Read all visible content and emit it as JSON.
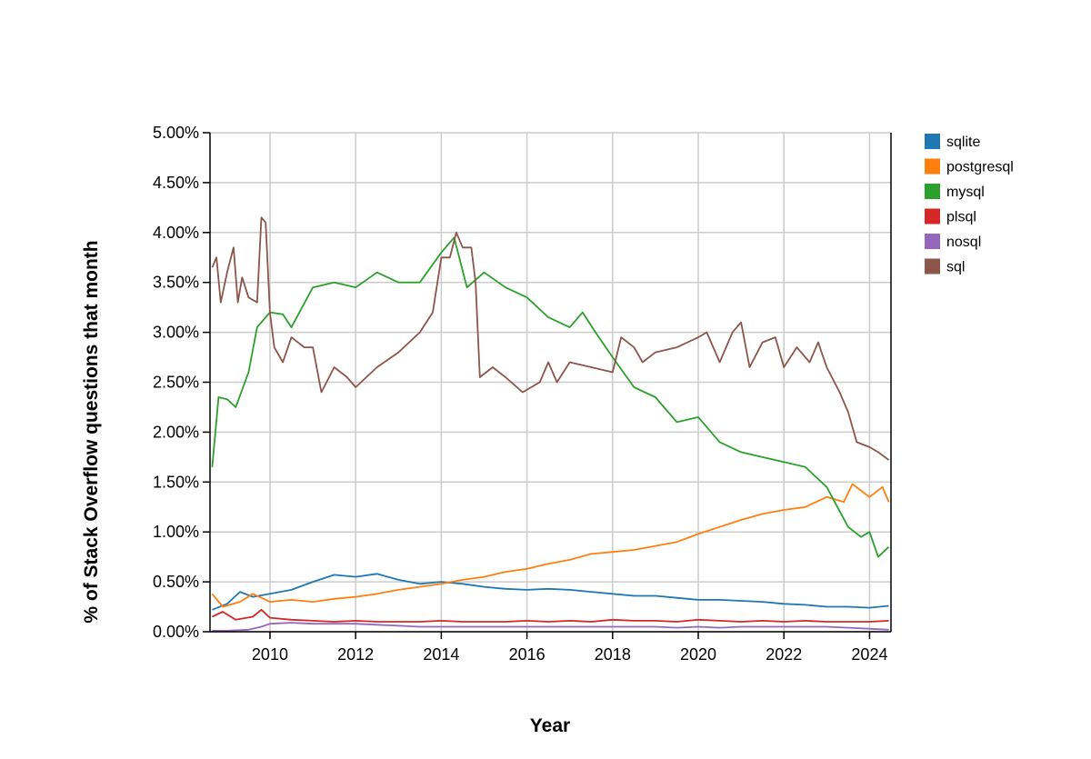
{
  "chart_data": {
    "type": "line",
    "xlabel": "Year",
    "ylabel": "% of Stack Overflow questions that month",
    "xlim": [
      2008.6,
      2024.5
    ],
    "ylim": [
      0,
      5
    ],
    "x_ticks": [
      2010,
      2012,
      2014,
      2016,
      2018,
      2020,
      2022,
      2024
    ],
    "x_tick_labels": [
      "2010",
      "2012",
      "2014",
      "2016",
      "2018",
      "2020",
      "2022",
      "2024"
    ],
    "y_ticks": [
      0,
      0.5,
      1,
      1.5,
      2,
      2.5,
      3,
      3.5,
      4,
      4.5,
      5
    ],
    "y_tick_labels": [
      "0.00%",
      "0.50%",
      "1.00%",
      "1.50%",
      "2.00%",
      "2.50%",
      "3.00%",
      "3.50%",
      "4.00%",
      "4.50%",
      "5.00%"
    ],
    "grid": true,
    "legend_position": "top-right",
    "series": [
      {
        "name": "sqlite",
        "color": "#1f77b4",
        "points": [
          [
            2008.65,
            0.22
          ],
          [
            2009.0,
            0.28
          ],
          [
            2009.3,
            0.4
          ],
          [
            2009.6,
            0.35
          ],
          [
            2010.0,
            0.38
          ],
          [
            2010.5,
            0.42
          ],
          [
            2011.0,
            0.5
          ],
          [
            2011.5,
            0.57
          ],
          [
            2012.0,
            0.55
          ],
          [
            2012.5,
            0.58
          ],
          [
            2013.0,
            0.52
          ],
          [
            2013.5,
            0.48
          ],
          [
            2014.0,
            0.5
          ],
          [
            2014.5,
            0.48
          ],
          [
            2015.0,
            0.45
          ],
          [
            2015.5,
            0.43
          ],
          [
            2016.0,
            0.42
          ],
          [
            2016.5,
            0.43
          ],
          [
            2017.0,
            0.42
          ],
          [
            2017.5,
            0.4
          ],
          [
            2018.0,
            0.38
          ],
          [
            2018.5,
            0.36
          ],
          [
            2019.0,
            0.36
          ],
          [
            2019.5,
            0.34
          ],
          [
            2020.0,
            0.32
          ],
          [
            2020.5,
            0.32
          ],
          [
            2021.0,
            0.31
          ],
          [
            2021.5,
            0.3
          ],
          [
            2022.0,
            0.28
          ],
          [
            2022.5,
            0.27
          ],
          [
            2023.0,
            0.25
          ],
          [
            2023.5,
            0.25
          ],
          [
            2024.0,
            0.24
          ],
          [
            2024.45,
            0.26
          ]
        ]
      },
      {
        "name": "postgresql",
        "color": "#ff7f0e",
        "points": [
          [
            2008.65,
            0.38
          ],
          [
            2008.9,
            0.25
          ],
          [
            2009.3,
            0.3
          ],
          [
            2009.6,
            0.38
          ],
          [
            2010.0,
            0.3
          ],
          [
            2010.5,
            0.32
          ],
          [
            2011.0,
            0.3
          ],
          [
            2011.5,
            0.33
          ],
          [
            2012.0,
            0.35
          ],
          [
            2012.5,
            0.38
          ],
          [
            2013.0,
            0.42
          ],
          [
            2013.5,
            0.45
          ],
          [
            2014.0,
            0.48
          ],
          [
            2014.5,
            0.52
          ],
          [
            2015.0,
            0.55
          ],
          [
            2015.5,
            0.6
          ],
          [
            2016.0,
            0.63
          ],
          [
            2016.5,
            0.68
          ],
          [
            2017.0,
            0.72
          ],
          [
            2017.5,
            0.78
          ],
          [
            2018.0,
            0.8
          ],
          [
            2018.5,
            0.82
          ],
          [
            2019.0,
            0.86
          ],
          [
            2019.5,
            0.9
          ],
          [
            2020.0,
            0.98
          ],
          [
            2020.5,
            1.05
          ],
          [
            2021.0,
            1.12
          ],
          [
            2021.5,
            1.18
          ],
          [
            2022.0,
            1.22
          ],
          [
            2022.5,
            1.25
          ],
          [
            2023.0,
            1.35
          ],
          [
            2023.4,
            1.3
          ],
          [
            2023.6,
            1.48
          ],
          [
            2024.0,
            1.35
          ],
          [
            2024.3,
            1.45
          ],
          [
            2024.45,
            1.3
          ]
        ]
      },
      {
        "name": "mysql",
        "color": "#2ca02c",
        "points": [
          [
            2008.65,
            1.65
          ],
          [
            2008.8,
            2.35
          ],
          [
            2009.0,
            2.33
          ],
          [
            2009.2,
            2.25
          ],
          [
            2009.5,
            2.6
          ],
          [
            2009.7,
            3.05
          ],
          [
            2010.0,
            3.2
          ],
          [
            2010.3,
            3.18
          ],
          [
            2010.5,
            3.05
          ],
          [
            2011.0,
            3.45
          ],
          [
            2011.5,
            3.5
          ],
          [
            2012.0,
            3.45
          ],
          [
            2012.5,
            3.6
          ],
          [
            2013.0,
            3.5
          ],
          [
            2013.5,
            3.5
          ],
          [
            2014.0,
            3.8
          ],
          [
            2014.3,
            3.95
          ],
          [
            2014.6,
            3.45
          ],
          [
            2015.0,
            3.6
          ],
          [
            2015.5,
            3.45
          ],
          [
            2016.0,
            3.35
          ],
          [
            2016.5,
            3.15
          ],
          [
            2017.0,
            3.05
          ],
          [
            2017.3,
            3.2
          ],
          [
            2017.6,
            3.0
          ],
          [
            2018.0,
            2.75
          ],
          [
            2018.5,
            2.45
          ],
          [
            2019.0,
            2.35
          ],
          [
            2019.5,
            2.1
          ],
          [
            2020.0,
            2.15
          ],
          [
            2020.5,
            1.9
          ],
          [
            2021.0,
            1.8
          ],
          [
            2021.5,
            1.75
          ],
          [
            2022.0,
            1.7
          ],
          [
            2022.5,
            1.65
          ],
          [
            2023.0,
            1.45
          ],
          [
            2023.5,
            1.05
          ],
          [
            2023.8,
            0.95
          ],
          [
            2024.0,
            1.0
          ],
          [
            2024.2,
            0.75
          ],
          [
            2024.45,
            0.85
          ]
        ]
      },
      {
        "name": "plsql",
        "color": "#d62728",
        "points": [
          [
            2008.65,
            0.15
          ],
          [
            2008.9,
            0.2
          ],
          [
            2009.2,
            0.12
          ],
          [
            2009.6,
            0.15
          ],
          [
            2009.8,
            0.22
          ],
          [
            2010.0,
            0.14
          ],
          [
            2010.5,
            0.12
          ],
          [
            2011.0,
            0.11
          ],
          [
            2011.5,
            0.1
          ],
          [
            2012.0,
            0.11
          ],
          [
            2012.5,
            0.1
          ],
          [
            2013.0,
            0.1
          ],
          [
            2013.5,
            0.1
          ],
          [
            2014.0,
            0.11
          ],
          [
            2014.5,
            0.1
          ],
          [
            2015.0,
            0.1
          ],
          [
            2015.5,
            0.1
          ],
          [
            2016.0,
            0.11
          ],
          [
            2016.5,
            0.1
          ],
          [
            2017.0,
            0.11
          ],
          [
            2017.5,
            0.1
          ],
          [
            2018.0,
            0.12
          ],
          [
            2018.5,
            0.11
          ],
          [
            2019.0,
            0.11
          ],
          [
            2019.5,
            0.1
          ],
          [
            2020.0,
            0.12
          ],
          [
            2020.5,
            0.11
          ],
          [
            2021.0,
            0.1
          ],
          [
            2021.5,
            0.11
          ],
          [
            2022.0,
            0.1
          ],
          [
            2022.5,
            0.11
          ],
          [
            2023.0,
            0.1
          ],
          [
            2023.5,
            0.1
          ],
          [
            2024.0,
            0.1
          ],
          [
            2024.45,
            0.11
          ]
        ]
      },
      {
        "name": "nosql",
        "color": "#9467bd",
        "points": [
          [
            2008.65,
            0.01
          ],
          [
            2009.0,
            0.01
          ],
          [
            2009.5,
            0.02
          ],
          [
            2009.8,
            0.05
          ],
          [
            2010.0,
            0.08
          ],
          [
            2010.5,
            0.09
          ],
          [
            2011.0,
            0.08
          ],
          [
            2011.5,
            0.08
          ],
          [
            2012.0,
            0.08
          ],
          [
            2012.5,
            0.07
          ],
          [
            2013.0,
            0.06
          ],
          [
            2013.5,
            0.05
          ],
          [
            2014.0,
            0.05
          ],
          [
            2014.5,
            0.05
          ],
          [
            2015.0,
            0.05
          ],
          [
            2015.5,
            0.05
          ],
          [
            2016.0,
            0.05
          ],
          [
            2016.5,
            0.05
          ],
          [
            2017.0,
            0.05
          ],
          [
            2017.5,
            0.05
          ],
          [
            2018.0,
            0.05
          ],
          [
            2018.5,
            0.05
          ],
          [
            2019.0,
            0.05
          ],
          [
            2019.5,
            0.04
          ],
          [
            2020.0,
            0.05
          ],
          [
            2020.5,
            0.04
          ],
          [
            2021.0,
            0.05
          ],
          [
            2021.5,
            0.05
          ],
          [
            2022.0,
            0.05
          ],
          [
            2022.5,
            0.05
          ],
          [
            2023.0,
            0.05
          ],
          [
            2023.5,
            0.04
          ],
          [
            2024.0,
            0.03
          ],
          [
            2024.45,
            0.02
          ]
        ]
      },
      {
        "name": "sql",
        "color": "#8c564b",
        "points": [
          [
            2008.65,
            3.65
          ],
          [
            2008.75,
            3.75
          ],
          [
            2008.85,
            3.3
          ],
          [
            2009.0,
            3.6
          ],
          [
            2009.15,
            3.85
          ],
          [
            2009.25,
            3.3
          ],
          [
            2009.35,
            3.55
          ],
          [
            2009.5,
            3.35
          ],
          [
            2009.7,
            3.3
          ],
          [
            2009.8,
            4.15
          ],
          [
            2009.9,
            4.1
          ],
          [
            2010.0,
            3.2
          ],
          [
            2010.1,
            2.85
          ],
          [
            2010.3,
            2.7
          ],
          [
            2010.5,
            2.95
          ],
          [
            2010.8,
            2.85
          ],
          [
            2011.0,
            2.85
          ],
          [
            2011.2,
            2.4
          ],
          [
            2011.5,
            2.65
          ],
          [
            2011.8,
            2.55
          ],
          [
            2012.0,
            2.45
          ],
          [
            2012.5,
            2.65
          ],
          [
            2013.0,
            2.8
          ],
          [
            2013.5,
            3.0
          ],
          [
            2013.8,
            3.2
          ],
          [
            2014.0,
            3.75
          ],
          [
            2014.2,
            3.75
          ],
          [
            2014.35,
            4.0
          ],
          [
            2014.5,
            3.85
          ],
          [
            2014.7,
            3.85
          ],
          [
            2014.8,
            3.5
          ],
          [
            2014.9,
            2.55
          ],
          [
            2015.2,
            2.65
          ],
          [
            2015.5,
            2.55
          ],
          [
            2015.9,
            2.4
          ],
          [
            2016.3,
            2.5
          ],
          [
            2016.5,
            2.7
          ],
          [
            2016.7,
            2.5
          ],
          [
            2017.0,
            2.7
          ],
          [
            2017.5,
            2.65
          ],
          [
            2018.0,
            2.6
          ],
          [
            2018.2,
            2.95
          ],
          [
            2018.5,
            2.85
          ],
          [
            2018.7,
            2.7
          ],
          [
            2019.0,
            2.8
          ],
          [
            2019.5,
            2.85
          ],
          [
            2020.0,
            2.95
          ],
          [
            2020.2,
            3.0
          ],
          [
            2020.5,
            2.7
          ],
          [
            2020.8,
            3.0
          ],
          [
            2021.0,
            3.1
          ],
          [
            2021.2,
            2.65
          ],
          [
            2021.5,
            2.9
          ],
          [
            2021.8,
            2.95
          ],
          [
            2022.0,
            2.65
          ],
          [
            2022.3,
            2.85
          ],
          [
            2022.6,
            2.7
          ],
          [
            2022.8,
            2.9
          ],
          [
            2023.0,
            2.65
          ],
          [
            2023.3,
            2.4
          ],
          [
            2023.5,
            2.2
          ],
          [
            2023.7,
            1.9
          ],
          [
            2024.0,
            1.85
          ],
          [
            2024.2,
            1.8
          ],
          [
            2024.45,
            1.72
          ]
        ]
      }
    ]
  }
}
